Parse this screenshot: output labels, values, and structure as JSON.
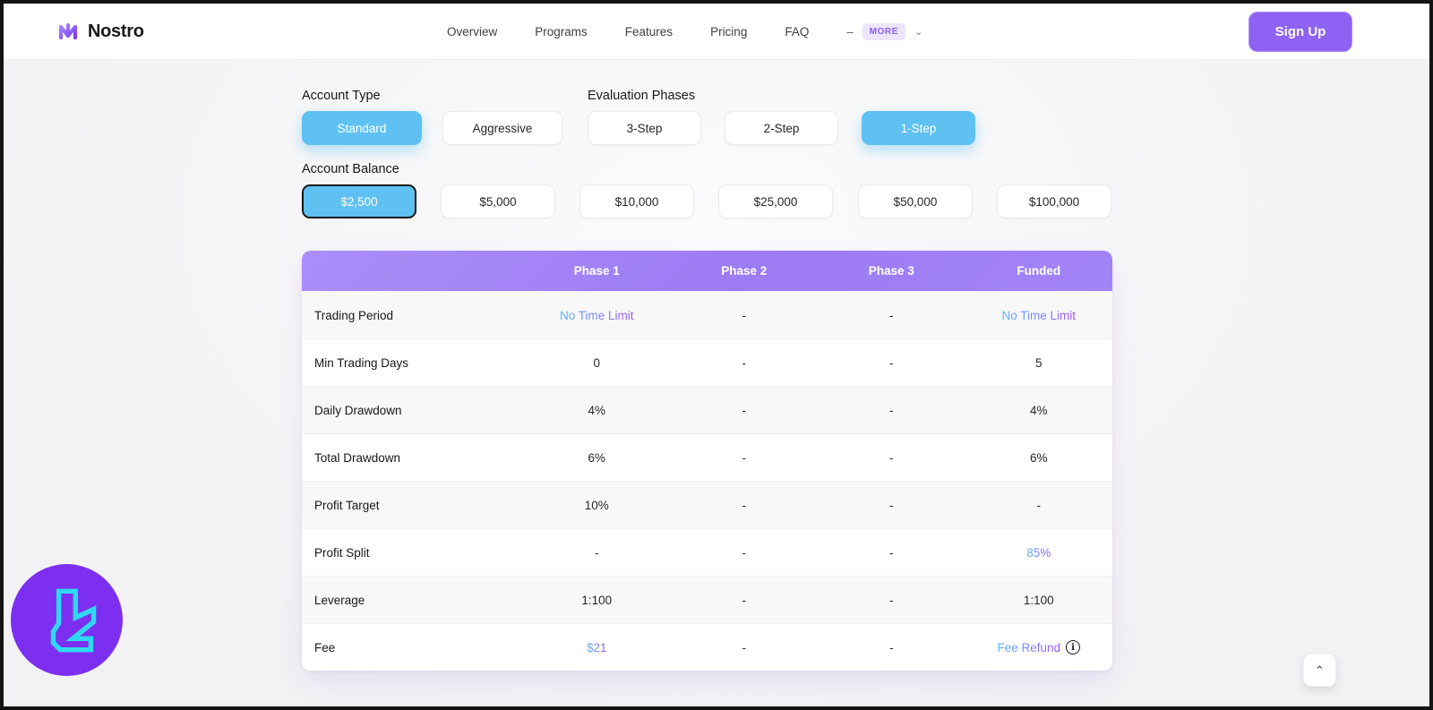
{
  "header": {
    "brand": "Nostro",
    "nav_links": [
      "Overview",
      "Programs",
      "Features",
      "Pricing",
      "FAQ"
    ],
    "nav_dash": "–",
    "more_label": "MORE",
    "signup_label": "Sign Up"
  },
  "filters": {
    "account_type": {
      "label": "Account Type",
      "options": [
        {
          "label": "Standard",
          "selected": true
        },
        {
          "label": "Aggressive",
          "selected": false
        }
      ]
    },
    "evaluation_phases": {
      "label": "Evaluation Phases",
      "options": [
        {
          "label": "3-Step",
          "selected": false
        },
        {
          "label": "2-Step",
          "selected": false
        },
        {
          "label": "1-Step",
          "selected": true
        }
      ]
    },
    "account_balance": {
      "label": "Account Balance",
      "options": [
        {
          "label": "$2,500",
          "selected": true
        },
        {
          "label": "$5,000",
          "selected": false
        },
        {
          "label": "$10,000",
          "selected": false
        },
        {
          "label": "$25,000",
          "selected": false
        },
        {
          "label": "$50,000",
          "selected": false
        },
        {
          "label": "$100,000",
          "selected": false
        }
      ]
    }
  },
  "table": {
    "columns": [
      "Phase 1",
      "Phase 2",
      "Phase 3",
      "Funded"
    ],
    "rows": [
      {
        "label": "Trading Period",
        "values": [
          {
            "text": "No Time Limit",
            "gradient": true
          },
          {
            "text": "-"
          },
          {
            "text": "-"
          },
          {
            "text": "No Time Limit",
            "gradient": true
          }
        ]
      },
      {
        "label": "Min Trading Days",
        "values": [
          {
            "text": "0"
          },
          {
            "text": "-"
          },
          {
            "text": "-"
          },
          {
            "text": "5"
          }
        ]
      },
      {
        "label": "Daily Drawdown",
        "values": [
          {
            "text": "4%"
          },
          {
            "text": "-"
          },
          {
            "text": "-"
          },
          {
            "text": "4%"
          }
        ]
      },
      {
        "label": "Total Drawdown",
        "values": [
          {
            "text": "6%"
          },
          {
            "text": "-"
          },
          {
            "text": "-"
          },
          {
            "text": "6%"
          }
        ]
      },
      {
        "label": "Profit Target",
        "values": [
          {
            "text": "10%"
          },
          {
            "text": "-"
          },
          {
            "text": "-"
          },
          {
            "text": "-"
          }
        ]
      },
      {
        "label": "Profit Split",
        "values": [
          {
            "text": "-"
          },
          {
            "text": "-"
          },
          {
            "text": "-"
          },
          {
            "text": "85%",
            "gradient": true
          }
        ]
      },
      {
        "label": "Leverage",
        "values": [
          {
            "text": "1:100"
          },
          {
            "text": "-"
          },
          {
            "text": "-"
          },
          {
            "text": "1:100"
          }
        ]
      },
      {
        "label": "Fee",
        "values": [
          {
            "text": "$21",
            "gradient": true
          },
          {
            "text": "-"
          },
          {
            "text": "-"
          },
          {
            "text": "Fee Refund",
            "gradient": true,
            "info": true
          }
        ]
      }
    ],
    "info_glyph": "i"
  },
  "widgets": {
    "scroll_top_glyph": "⌃"
  },
  "colors": {
    "accent_purple": "#8e62f3",
    "selected_blue": "#5ec1f2",
    "table_header_purple": "#a184f6",
    "gradient_text_start": "#5ab6f2",
    "gradient_text_end": "#a055f1",
    "badge_purple": "#7c2ff0",
    "badge_glyph_cyan": "#2fd9f2"
  }
}
